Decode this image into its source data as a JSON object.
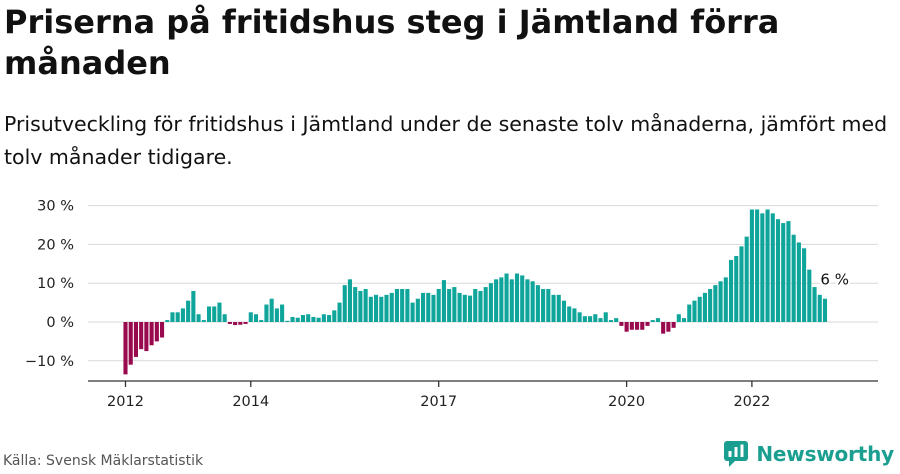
{
  "title": "Priserna på fritidshus steg i Jämtland förra månaden",
  "subtitle": "Prisutveckling för fritidshus i Jämtland under de senaste tolv månaderna, jämfört med tolv månader tidigare.",
  "source": "Källa: Svensk Mäklarstatistik",
  "brand": {
    "name": "Newsworthy",
    "icon": "newsworthy-logo-icon"
  },
  "colors": {
    "positive": "#0fa59b",
    "negative": "#98094d",
    "grid": "#d9d9d9",
    "axis": "#333333",
    "text": "#222222"
  },
  "chart_data": {
    "type": "bar",
    "x_label": "",
    "y_label": "",
    "ylim": [
      -15,
      32
    ],
    "y_ticks": [
      -10,
      0,
      10,
      20,
      30
    ],
    "y_tick_labels": [
      "−10 %",
      "0 %",
      "10 %",
      "20 %",
      "30 %"
    ],
    "x_ticks": [
      "2012",
      "2014",
      "2017",
      "2020",
      "2022"
    ],
    "grid": true,
    "legend": "none",
    "annotation": {
      "label": "6 %",
      "month": "2023-05",
      "value": 6
    },
    "series": [
      {
        "start_month": "2012-01",
        "values": [
          -13.5,
          -11,
          -9,
          -7,
          -7.5,
          -6,
          -5,
          -4,
          0.5,
          2.5,
          2.5,
          3.5,
          5.5,
          8,
          2,
          0.5,
          4,
          4,
          5,
          2,
          -0.5,
          -0.8,
          -0.7,
          -0.5,
          2.5,
          2,
          0.5,
          4.5,
          6,
          3.5,
          4.5,
          0.3,
          1.3,
          1.1,
          1.8,
          2,
          1.3,
          1.1,
          2,
          1.8,
          3,
          5,
          9.5,
          11,
          9,
          8,
          8.5,
          6.5,
          7,
          6.5,
          7,
          7.5,
          8.5,
          8.5,
          8.5,
          5,
          6,
          7.5,
          7.5,
          7,
          8.5,
          10.8,
          8.5,
          9,
          7.5,
          7,
          6.8,
          8.5,
          8,
          9,
          10,
          11,
          11.5,
          12.5,
          11,
          12.5,
          12,
          11,
          10.5,
          9.5,
          8.5,
          8.5,
          7,
          7,
          5.5,
          4,
          3.5,
          2.5,
          1.5,
          1.5,
          2,
          1,
          2.5,
          0.5,
          1,
          -1,
          -2.5,
          -2,
          -2,
          -2,
          -1,
          0.5,
          1,
          -3,
          -2.5,
          -1.5,
          2,
          1,
          4.5,
          5.5,
          6.5,
          7.5,
          8.5,
          9.5,
          10.5,
          11.5,
          16,
          17,
          19.5,
          22,
          29,
          29,
          28,
          29,
          28,
          26.5,
          25.5,
          26,
          22.5,
          20.5,
          19,
          13.5,
          9,
          7,
          6
        ]
      }
    ]
  }
}
